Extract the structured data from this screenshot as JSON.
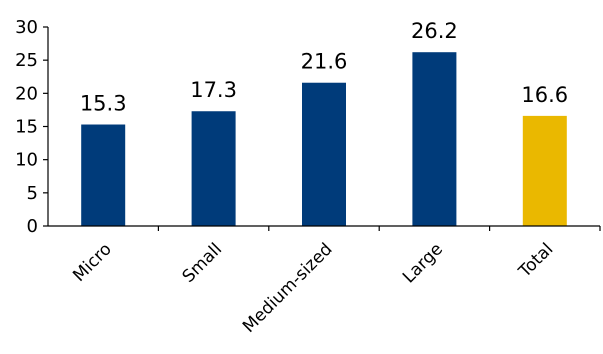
{
  "chart_data": {
    "type": "bar",
    "title": "",
    "xlabel": "",
    "ylabel": "",
    "ylim": [
      0,
      30
    ],
    "yticks": [
      0,
      5,
      10,
      15,
      20,
      25,
      30
    ],
    "categories": [
      "Micro",
      "Small",
      "Medium-sized",
      "Large",
      "Total"
    ],
    "values": [
      15.3,
      17.3,
      21.6,
      26.2,
      16.6
    ],
    "value_labels": [
      "15.3",
      "17.3",
      "21.6",
      "26.2",
      "16.6"
    ],
    "bar_colors": [
      "#003b7a",
      "#003b7a",
      "#003b7a",
      "#003b7a",
      "#eab800"
    ],
    "axis_color": "#000000",
    "grid": false,
    "legend": "none"
  }
}
